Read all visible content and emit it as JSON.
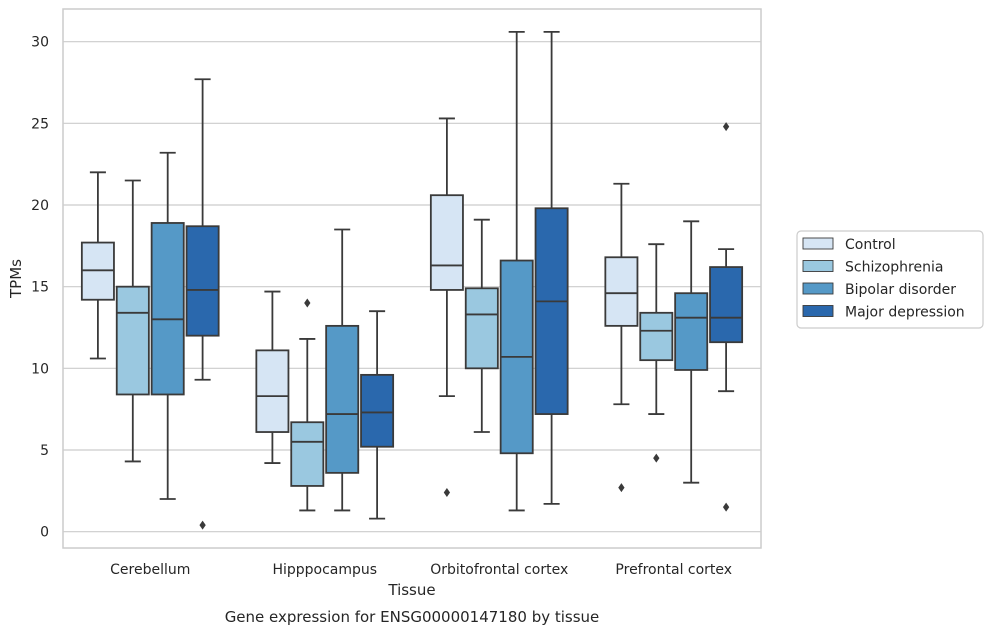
{
  "chart_data": {
    "type": "box",
    "xlabel": "Tissue",
    "ylabel": "TPMs",
    "caption": "Gene expression for ENSG00000147180 by tissue",
    "ylim": [
      -1,
      32
    ],
    "yticks": [
      0,
      5,
      10,
      15,
      20,
      25,
      30
    ],
    "grid": "horizontal",
    "legend_position": "right",
    "categories": [
      "Cerebellum",
      "Hipppocampus",
      "Orbitofrontal cortex",
      "Prefrontal cortex"
    ],
    "series": [
      {
        "name": "Control",
        "color": "#d6e5f4",
        "boxes": [
          {
            "whislo": 10.6,
            "q1": 14.2,
            "med": 16.0,
            "q3": 17.7,
            "whishi": 22.0,
            "fliers": []
          },
          {
            "whislo": 4.2,
            "q1": 6.1,
            "med": 8.3,
            "q3": 11.1,
            "whishi": 14.7,
            "fliers": []
          },
          {
            "whislo": 8.3,
            "q1": 14.8,
            "med": 16.3,
            "q3": 20.6,
            "whishi": 25.3,
            "fliers": [
              2.4
            ]
          },
          {
            "whislo": 7.8,
            "q1": 12.6,
            "med": 14.6,
            "q3": 16.8,
            "whishi": 21.3,
            "fliers": [
              2.7
            ]
          }
        ]
      },
      {
        "name": "Schizophrenia",
        "color": "#9ac8e0",
        "boxes": [
          {
            "whislo": 4.3,
            "q1": 8.4,
            "med": 13.4,
            "q3": 15.0,
            "whishi": 21.5,
            "fliers": []
          },
          {
            "whislo": 1.3,
            "q1": 2.8,
            "med": 5.5,
            "q3": 6.7,
            "whishi": 11.8,
            "fliers": [
              14.0
            ]
          },
          {
            "whislo": 6.1,
            "q1": 10.0,
            "med": 13.3,
            "q3": 14.9,
            "whishi": 19.1,
            "fliers": []
          },
          {
            "whislo": 7.2,
            "q1": 10.5,
            "med": 12.3,
            "q3": 13.4,
            "whishi": 17.6,
            "fliers": [
              4.5
            ]
          }
        ]
      },
      {
        "name": "Bipolar disorder",
        "color": "#5599c7",
        "boxes": [
          {
            "whislo": 2.0,
            "q1": 8.4,
            "med": 13.0,
            "q3": 18.9,
            "whishi": 23.2,
            "fliers": []
          },
          {
            "whislo": 1.3,
            "q1": 3.6,
            "med": 7.2,
            "q3": 12.6,
            "whishi": 18.5,
            "fliers": []
          },
          {
            "whislo": 1.3,
            "q1": 4.8,
            "med": 10.7,
            "q3": 16.6,
            "whishi": 30.6,
            "fliers": []
          },
          {
            "whislo": 3.0,
            "q1": 9.9,
            "med": 13.1,
            "q3": 14.6,
            "whishi": 19.0,
            "fliers": []
          }
        ]
      },
      {
        "name": "Major depression",
        "color": "#2a68ad",
        "boxes": [
          {
            "whislo": 9.3,
            "q1": 12.0,
            "med": 14.8,
            "q3": 18.7,
            "whishi": 27.7,
            "fliers": [
              0.4
            ]
          },
          {
            "whislo": 0.8,
            "q1": 5.2,
            "med": 7.3,
            "q3": 9.6,
            "whishi": 13.5,
            "fliers": []
          },
          {
            "whislo": 1.7,
            "q1": 7.2,
            "med": 14.1,
            "q3": 19.8,
            "whishi": 30.6,
            "fliers": []
          },
          {
            "whislo": 8.6,
            "q1": 11.6,
            "med": 13.1,
            "q3": 16.2,
            "whishi": 17.3,
            "fliers": [
              1.5,
              24.8
            ]
          }
        ]
      }
    ]
  },
  "colors": {
    "grid": "#cccccc",
    "frame": "#cccccc",
    "edge": "#3a3a3a"
  }
}
